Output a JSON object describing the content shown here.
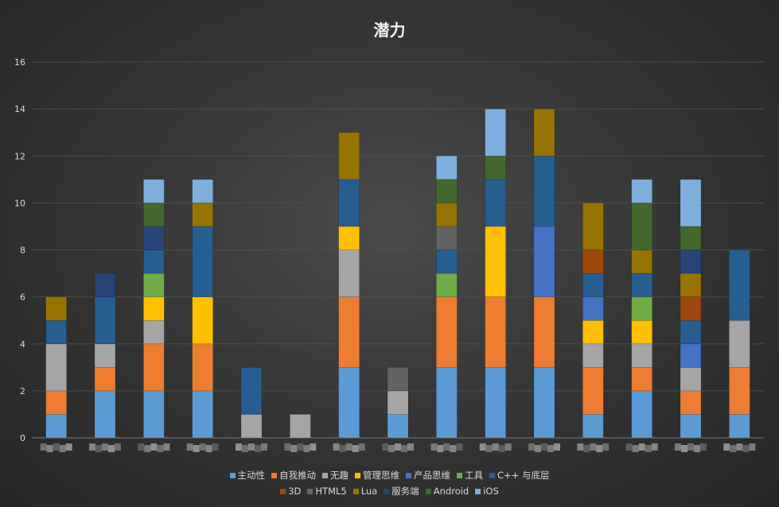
{
  "chart_data": {
    "type": "bar",
    "stacked": true,
    "title": "潜力",
    "xlabel": "",
    "ylabel": "",
    "ylim": [
      0,
      16
    ],
    "yticks": [
      0,
      2,
      4,
      6,
      8,
      10,
      12,
      14,
      16
    ],
    "grid": true,
    "legend_position": "bottom",
    "category_count": 15,
    "series": [
      {
        "name": "主动性",
        "color": "#5b9bd5",
        "values": [
          1,
          2,
          2,
          2,
          0,
          0,
          3,
          1,
          3,
          3,
          3,
          1,
          2,
          1,
          1
        ]
      },
      {
        "name": "自我推动",
        "color": "#ed7d31",
        "values": [
          1,
          1,
          2,
          2,
          0,
          0,
          3,
          0,
          3,
          3,
          3,
          2,
          1,
          1,
          2
        ]
      },
      {
        "name": "无趣",
        "color": "#a5a5a5",
        "values": [
          2,
          1,
          1,
          0,
          1,
          1,
          2,
          1,
          0,
          0,
          0,
          1,
          1,
          1,
          2
        ]
      },
      {
        "name": "管理思维",
        "color": "#ffc000",
        "values": [
          0,
          0,
          1,
          2,
          0,
          0,
          1,
          0,
          0,
          3,
          0,
          1,
          1,
          0,
          0
        ]
      },
      {
        "name": "产品思维",
        "color": "#4472c4",
        "values": [
          0,
          0,
          0,
          0,
          0,
          0,
          0,
          0,
          0,
          0,
          3,
          1,
          0,
          1,
          0
        ]
      },
      {
        "name": "工具",
        "color": "#70ad47",
        "values": [
          0,
          0,
          1,
          0,
          0,
          0,
          0,
          0,
          1,
          0,
          0,
          0,
          1,
          0,
          0
        ]
      },
      {
        "name": "C++ 与底层",
        "color": "#255e91",
        "values": [
          1,
          2,
          1,
          3,
          2,
          0,
          2,
          0,
          1,
          2,
          3,
          1,
          1,
          1,
          3
        ]
      },
      {
        "name": "3D",
        "color": "#9e480e",
        "values": [
          0,
          0,
          0,
          0,
          0,
          0,
          0,
          0,
          0,
          0,
          0,
          1,
          0,
          1,
          0
        ]
      },
      {
        "name": "HTML5",
        "color": "#636363",
        "values": [
          0,
          0,
          0,
          0,
          0,
          0,
          0,
          1,
          1,
          0,
          0,
          0,
          0,
          0,
          0
        ]
      },
      {
        "name": "Lua",
        "color": "#997300",
        "values": [
          1,
          0,
          0,
          1,
          0,
          0,
          2,
          0,
          1,
          0,
          2,
          2,
          1,
          1,
          0
        ]
      },
      {
        "name": "服务端",
        "color": "#264478",
        "values": [
          0,
          1,
          1,
          0,
          0,
          0,
          0,
          0,
          0,
          0,
          0,
          0,
          0,
          1,
          0
        ]
      },
      {
        "name": "Android",
        "color": "#43682b",
        "values": [
          0,
          0,
          1,
          0,
          0,
          0,
          0,
          0,
          1,
          1,
          0,
          0,
          2,
          1,
          0
        ]
      },
      {
        "name": "iOS",
        "color": "#7cafdd",
        "values": [
          0,
          0,
          1,
          1,
          0,
          0,
          0,
          0,
          1,
          2,
          0,
          0,
          1,
          2,
          0
        ]
      }
    ]
  }
}
